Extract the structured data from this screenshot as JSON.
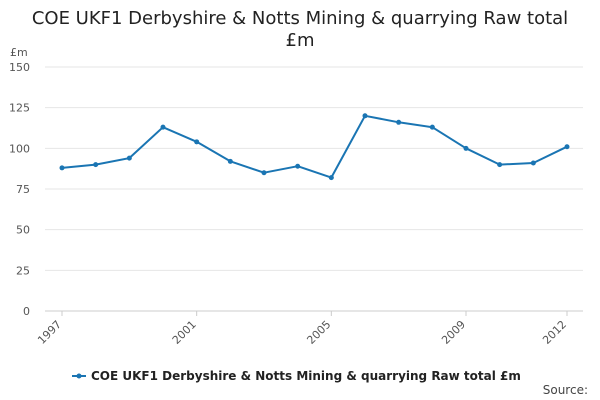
{
  "chart_data": {
    "type": "line",
    "title_lines": [
      "COE UKF1 Derbyshire & Notts Mining & quarrying Raw total",
      "£m"
    ],
    "ylabel": "£m",
    "xlabel": "",
    "ylim": [
      0,
      150
    ],
    "yticks": [
      0,
      25,
      50,
      75,
      100,
      125,
      150
    ],
    "xlim": [
      1997,
      2012
    ],
    "xticks": [
      1997,
      2001,
      2005,
      2009,
      2012
    ],
    "grid": "horizontal",
    "legend_position": "bottom",
    "series": [
      {
        "name": "COE UKF1 Derbyshire & Notts Mining & quarrying Raw total £m",
        "color": "#1a75b3",
        "x": [
          1997,
          1998,
          1999,
          2000,
          2001,
          2002,
          2003,
          2004,
          2005,
          2006,
          2007,
          2008,
          2009,
          2010,
          2011,
          2012
        ],
        "y": [
          88,
          90,
          94,
          113,
          104,
          92,
          85,
          89,
          82,
          120,
          116,
          113,
          100,
          90,
          91,
          101
        ]
      }
    ]
  },
  "footer": {
    "source_label": "Source:"
  }
}
